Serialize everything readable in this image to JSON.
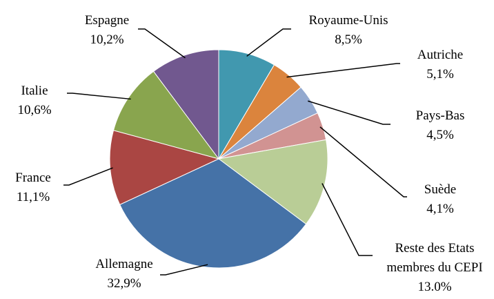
{
  "chart_data": {
    "type": "pie",
    "categories": [
      "Royaume-Unis",
      "Autriche",
      "Pays-Bas",
      "Suède",
      "Reste des Etats membres du CEPI",
      "Allemagne",
      "France",
      "Italie",
      "Espagne"
    ],
    "values": [
      8.5,
      5.1,
      4.5,
      4.1,
      13.0,
      32.9,
      11.1,
      10.6,
      10.2
    ],
    "value_labels": [
      "8,5%",
      "5,1%",
      "4,5%",
      "4,1%",
      "13.0%",
      "32,9%",
      "11,1%",
      "10,6%",
      "10,2%"
    ],
    "colors": [
      "#4198af",
      "#db843d",
      "#93a9cf",
      "#d19392",
      "#b9cd96",
      "#4572a7",
      "#aa4643",
      "#89a54e",
      "#71588f"
    ]
  }
}
